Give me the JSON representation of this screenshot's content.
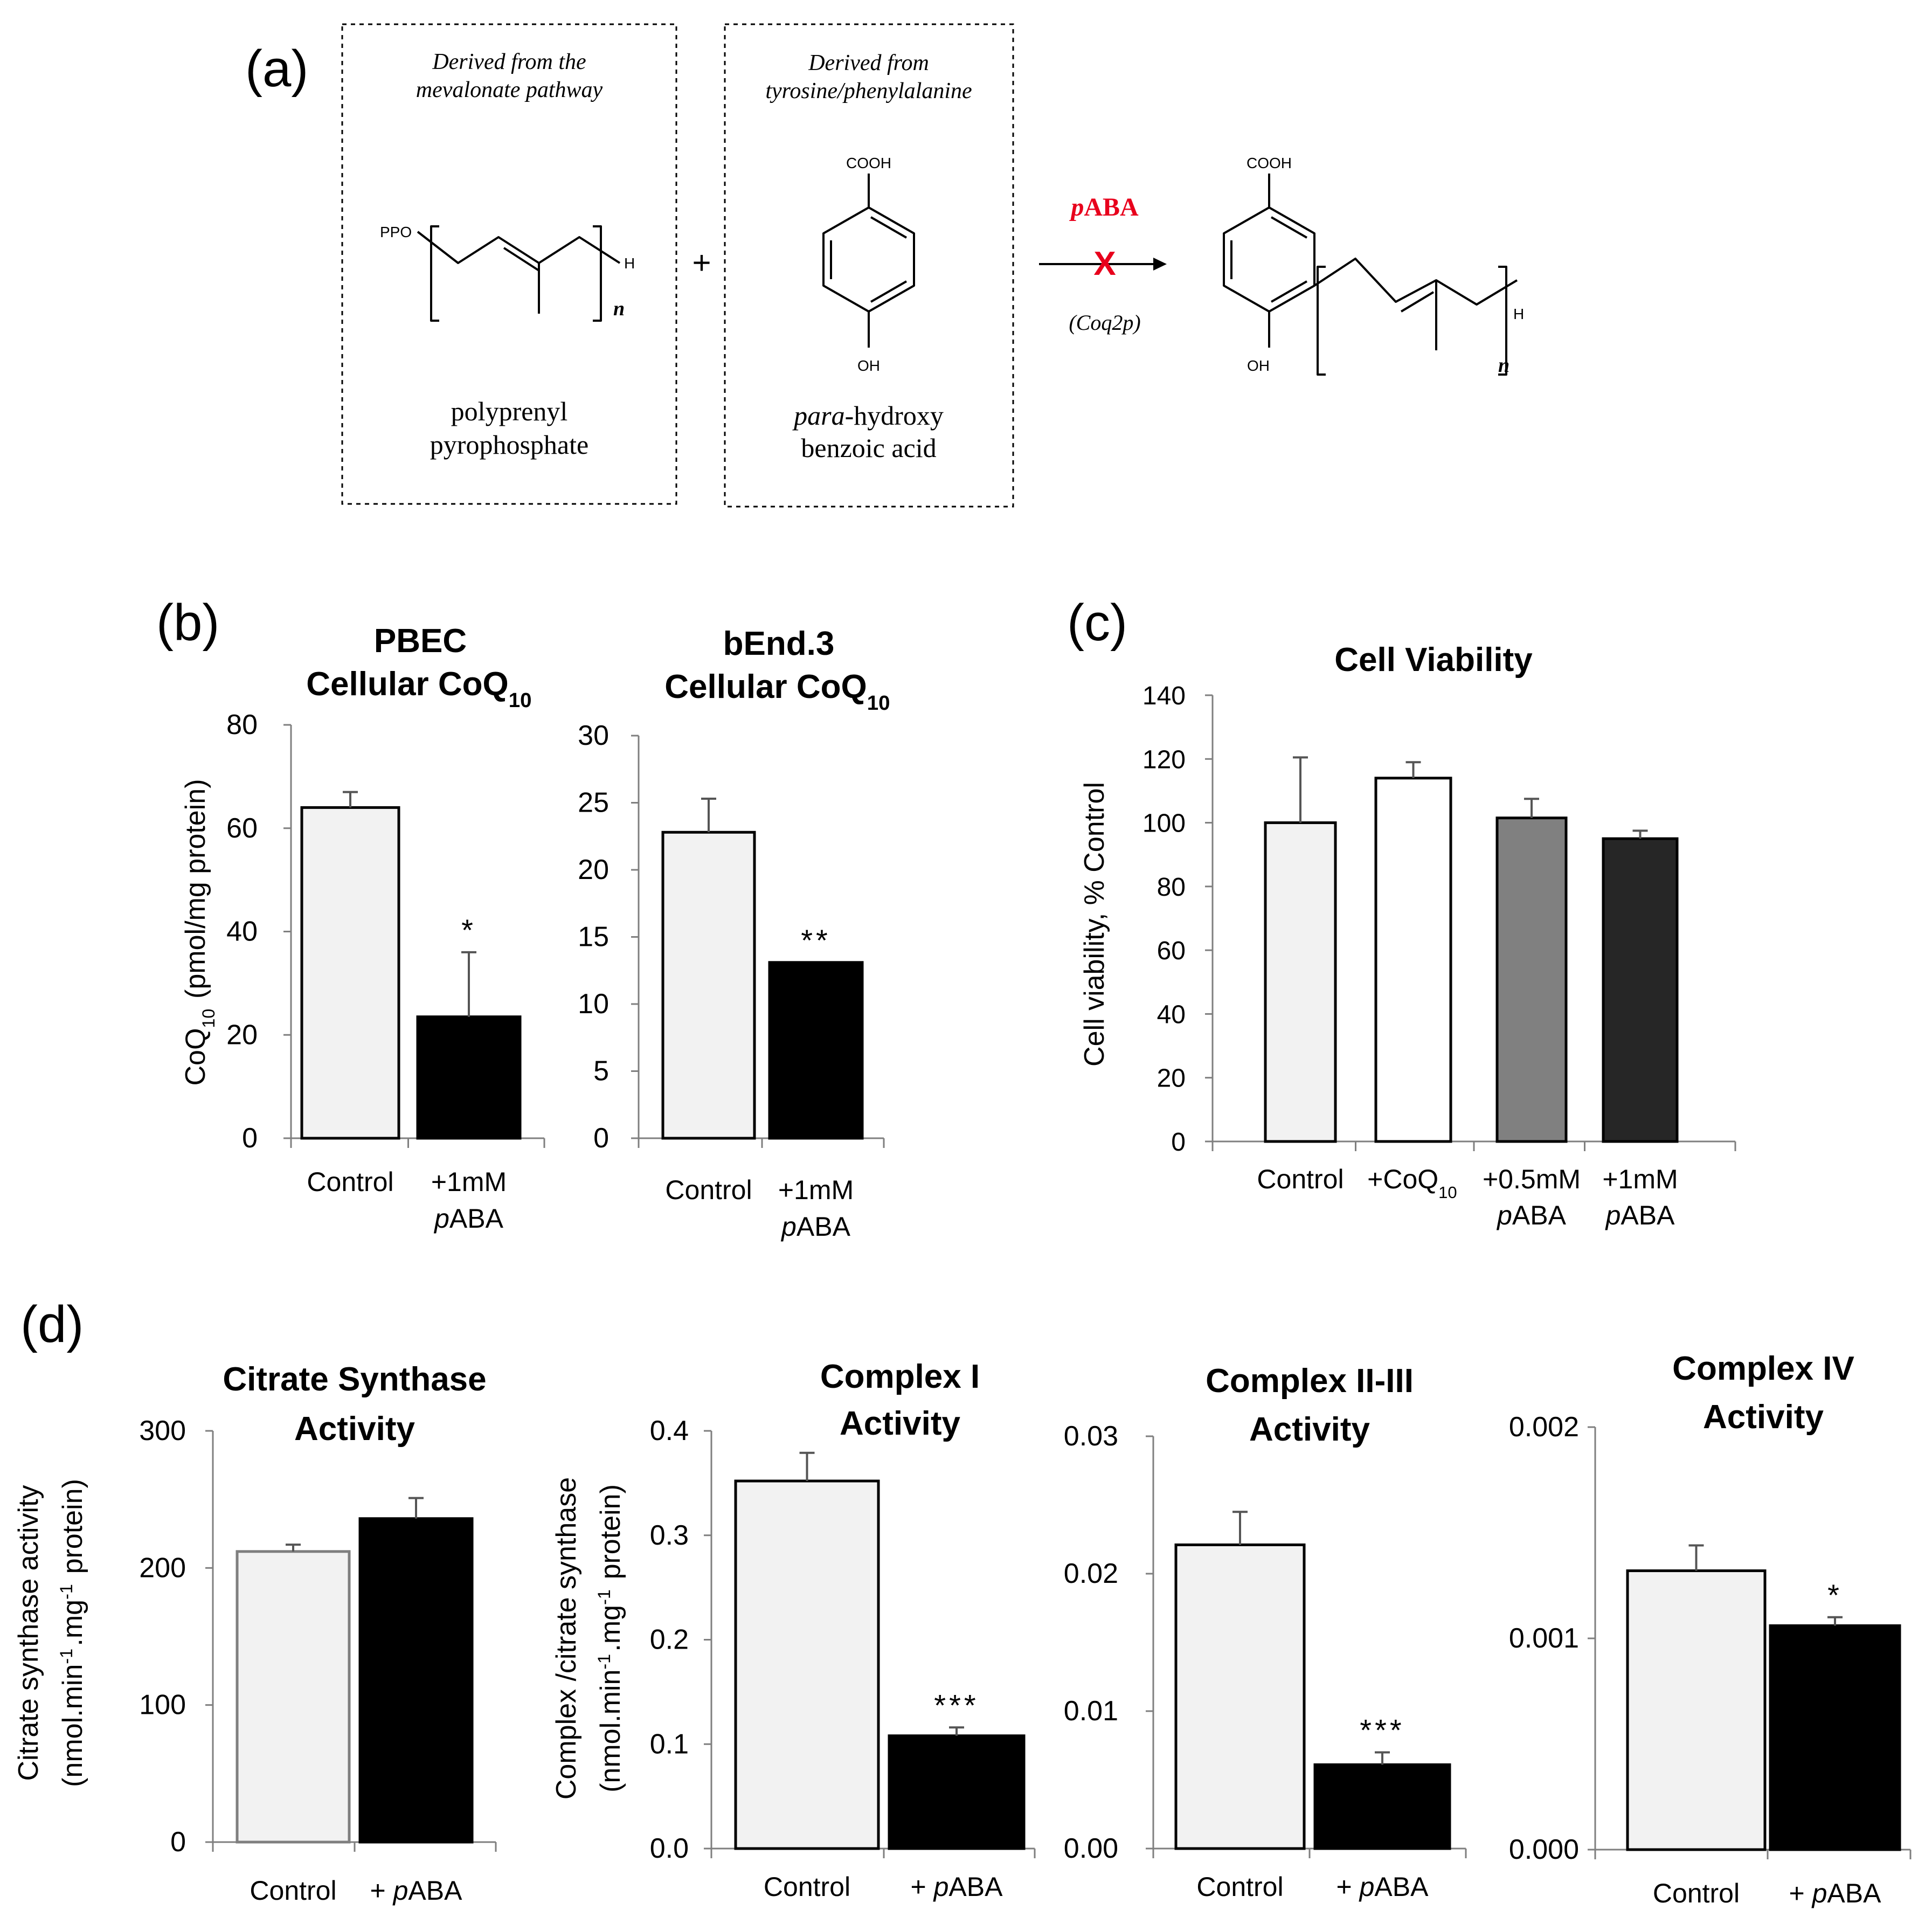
{
  "panel_labels": {
    "a": "(a)",
    "b": "(b)",
    "c": "(c)",
    "d": "(d)"
  },
  "scheme": {
    "box1_caption": [
      "Derived from the",
      "mevalonate pathway"
    ],
    "box1_name": [
      "polyprenyl",
      "pyrophosphate"
    ],
    "box2_caption": [
      "Derived from",
      "tyrosine/phenylalanine"
    ],
    "box2_name_italic": "para",
    "box2_name_rest": "-hydroxy",
    "box2_name2": "benzoic acid",
    "plus": "+",
    "inhibitor_italic": "p",
    "inhibitor_rest": "ABA",
    "block_mark": "X",
    "enzyme": "(Coq2p)",
    "atoms": {
      "ppo": "PPO",
      "h": "H",
      "n": "n",
      "cooh": "COOH",
      "oh": "OH"
    },
    "colors": {
      "inhibitor": "#e8001c",
      "box_border": "#000000"
    }
  },
  "colors": {
    "light_bar": "#f2f2f2",
    "black_bar": "#000000",
    "white_bar": "#ffffff",
    "grey_bar": "#808080",
    "dark_bar": "#262626",
    "axis": "#7f7f7f"
  },
  "chart_data": [
    {
      "id": "pbec",
      "type": "bar",
      "title": [
        "PBEC",
        "Cellular CoQ10"
      ],
      "ylabel": "CoQ10 (pmol/mg protein)",
      "ylim": [
        0,
        80
      ],
      "yticks": [
        "0",
        "20",
        "40",
        "60",
        "80"
      ],
      "categories": [
        [
          "Control"
        ],
        [
          "+1mM",
          "pABA"
        ]
      ],
      "values": [
        64,
        23.5
      ],
      "errors": [
        3,
        12.5
      ],
      "significance": [
        "",
        "*"
      ]
    },
    {
      "id": "bend3",
      "type": "bar",
      "title": [
        "bEnd.3",
        "Cellular CoQ10"
      ],
      "ylabel": "",
      "ylim": [
        0,
        30
      ],
      "yticks": [
        "0",
        "5",
        "10",
        "15",
        "20",
        "25",
        "30"
      ],
      "categories": [
        [
          "Control"
        ],
        [
          "+1mM",
          "pABA"
        ]
      ],
      "values": [
        22.8,
        13.1
      ],
      "errors": [
        2.5,
        0
      ],
      "significance": [
        "",
        "**"
      ]
    },
    {
      "id": "viability",
      "type": "bar",
      "title": [
        "Cell Viability"
      ],
      "ylabel": "Cell viability, % Control",
      "ylim": [
        0,
        140
      ],
      "yticks": [
        "0",
        "20",
        "40",
        "60",
        "80",
        "100",
        "120",
        "140"
      ],
      "categories": [
        [
          "Control"
        ],
        [
          "+CoQ10"
        ],
        [
          "+0.5mM",
          "pABA"
        ],
        [
          "+1mM",
          "pABA"
        ]
      ],
      "values": [
        100,
        114,
        101.5,
        95
      ],
      "errors": [
        20.5,
        5,
        6,
        2.5
      ],
      "significance": [
        "",
        "",
        "",
        ""
      ]
    },
    {
      "id": "citrate",
      "type": "bar",
      "title": [
        "Citrate Synthase",
        "Activity"
      ],
      "ylabel": "Citrate synthase activity (nmol.min-1.mg-1 protein)",
      "ylim": [
        0,
        300
      ],
      "yticks": [
        "0",
        "100",
        "200",
        "300"
      ],
      "categories": [
        [
          "Control"
        ],
        [
          "+ pABA"
        ]
      ],
      "values": [
        212,
        236
      ],
      "errors": [
        5,
        15
      ],
      "significance": [
        "",
        ""
      ]
    },
    {
      "id": "complex1",
      "type": "bar",
      "title": [
        "Complex I",
        "Activity"
      ],
      "ylabel": "Complex /citrate synthase (nmol.min-1.mg-1 protein)",
      "ylim": [
        0,
        0.4
      ],
      "yticks": [
        "0.0",
        "0.1",
        "0.2",
        "0.3",
        "0.4"
      ],
      "categories": [
        [
          "Control"
        ],
        [
          "+ pABA"
        ]
      ],
      "values": [
        0.352,
        0.108
      ],
      "errors": [
        0.027,
        0.008
      ],
      "significance": [
        "",
        "***"
      ]
    },
    {
      "id": "complex23",
      "type": "bar",
      "title": [
        "Complex II-III",
        "Activity"
      ],
      "ylabel": "",
      "ylim": [
        0,
        0.03
      ],
      "yticks": [
        "0.00",
        "0.01",
        "0.02",
        "0.03"
      ],
      "categories": [
        [
          "Control"
        ],
        [
          "+ pABA"
        ]
      ],
      "values": [
        0.0221,
        0.0061
      ],
      "errors": [
        0.0024,
        0.0009
      ],
      "significance": [
        "",
        "***"
      ]
    },
    {
      "id": "complex4",
      "type": "bar",
      "title": [
        "Complex IV",
        "Activity"
      ],
      "ylabel": "",
      "ylim": [
        0,
        0.002
      ],
      "yticks": [
        "0.000",
        "0.001",
        "0.002"
      ],
      "categories": [
        [
          "Control"
        ],
        [
          "+ pABA"
        ]
      ],
      "values": [
        0.00132,
        0.00106
      ],
      "errors": [
        0.00012,
        4e-05
      ],
      "significance": [
        "",
        "*"
      ]
    }
  ]
}
